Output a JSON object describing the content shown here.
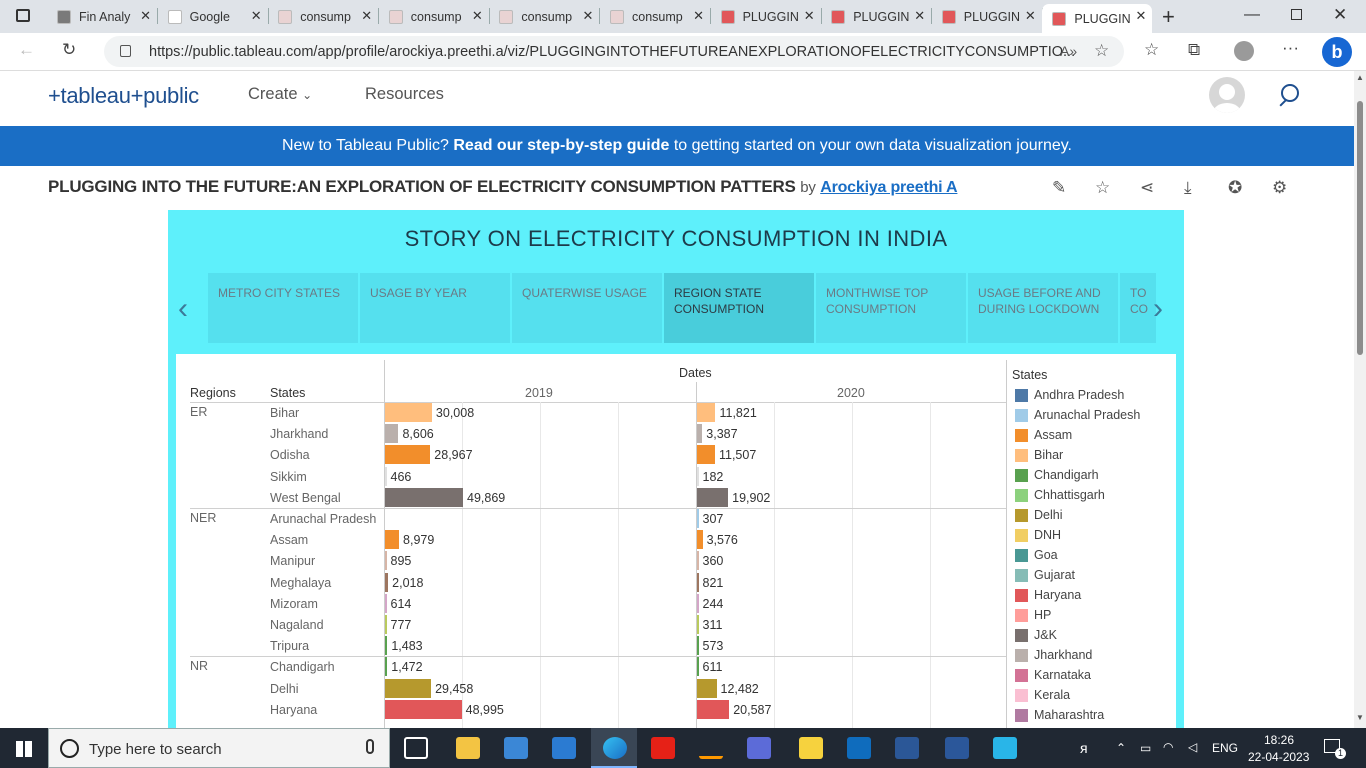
{
  "browser": {
    "tabs": [
      {
        "label": "Fin Analy",
        "favicon_color": "#7a7a7a"
      },
      {
        "label": "Google",
        "favicon_color": "#ffffff"
      },
      {
        "label": "consump",
        "favicon_color": "#e9d3d3"
      },
      {
        "label": "consump",
        "favicon_color": "#e9d3d3"
      },
      {
        "label": "consump",
        "favicon_color": "#e9d3d3"
      },
      {
        "label": "consump",
        "favicon_color": "#e9d3d3"
      },
      {
        "label": "PLUGGIN",
        "favicon_color": "#e15759"
      },
      {
        "label": "PLUGGIN",
        "favicon_color": "#e15759"
      },
      {
        "label": "PLUGGIN",
        "favicon_color": "#e15759"
      },
      {
        "label": "PLUGGIN",
        "favicon_color": "#e15759"
      }
    ],
    "active_tab_index": 9,
    "url": "https://public.tableau.com/app/profile/arockiya.preethi.a/viz/PLUGGINGINTOTHEFUTUREANEXPLORATIONOFELECTRICITYCONSUMPTIO..."
  },
  "tableau": {
    "logo": "+tableau+public",
    "nav_create": "Create",
    "nav_resources": "Resources",
    "banner_lead": "New to Tableau Public? ",
    "banner_link": "Read our step-by-step guide",
    "banner_tail": " to getting started on your own data visualization journey.",
    "viz_title": "PLUGGING INTO THE FUTURE:AN EXPLORATION OF ELECTRICITY CONSUMPTION PATTERS",
    "by": "by",
    "author": "Arockiya preethi A"
  },
  "story": {
    "title": "STORY ON ELECTRICITY CONSUMPTION IN INDIA",
    "points": [
      {
        "label": "METRO CITY STATES"
      },
      {
        "label": "USAGE BY YEAR"
      },
      {
        "label": "QUATERWISE USAGE"
      },
      {
        "label": "REGION STATE CONSUMPTION"
      },
      {
        "label": "MONTHWISE TOP CONSUMPTION"
      },
      {
        "label": "USAGE BEFORE AND DURING LOCKDOWN"
      },
      {
        "label": "TO CO"
      }
    ],
    "active_point_index": 3
  },
  "sheet": {
    "dates_header": "Dates",
    "regions_header": "Regions",
    "states_header": "States",
    "years": [
      "2019",
      "2020"
    ],
    "rows": [
      {
        "region": "ER",
        "state": "Bihar",
        "v2019": "30,008",
        "v2020": "11,821",
        "n2019": 30008,
        "n2020": 11821,
        "color": "#ffbe7d"
      },
      {
        "region": "",
        "state": "Jharkhand",
        "v2019": "8,606",
        "v2020": "3,387",
        "n2019": 8606,
        "n2020": 3387,
        "color": "#bab0ac"
      },
      {
        "region": "",
        "state": "Odisha",
        "v2019": "28,967",
        "v2020": "11,507",
        "n2019": 28967,
        "n2020": 11507,
        "color": "#f28e2b"
      },
      {
        "region": "",
        "state": "Sikkim",
        "v2019": "466",
        "v2020": "182",
        "n2019": 466,
        "n2020": 182,
        "color": "#e0e0e0"
      },
      {
        "region": "",
        "state": "West Bengal",
        "v2019": "49,869",
        "v2020": "19,902",
        "n2019": 49869,
        "n2020": 19902,
        "color": "#79706e"
      },
      {
        "region": "NER",
        "state": "Arunachal Pradesh",
        "v2019": "",
        "v2020": "307",
        "n2019": 0,
        "n2020": 307,
        "color": "#a0cbe8"
      },
      {
        "region": "",
        "state": "Assam",
        "v2019": "8,979",
        "v2020": "3,576",
        "n2019": 8979,
        "n2020": 3576,
        "color": "#f28e2b"
      },
      {
        "region": "",
        "state": "Manipur",
        "v2019": "895",
        "v2020": "360",
        "n2019": 895,
        "n2020": 360,
        "color": "#d7b5a6"
      },
      {
        "region": "",
        "state": "Meghalaya",
        "v2019": "2,018",
        "v2020": "821",
        "n2019": 2018,
        "n2020": 821,
        "color": "#9d7660"
      },
      {
        "region": "",
        "state": "Mizoram",
        "v2019": "614",
        "v2020": "244",
        "n2019": 614,
        "n2020": 244,
        "color": "#d4a6c8"
      },
      {
        "region": "",
        "state": "Nagaland",
        "v2019": "777",
        "v2020": "311",
        "n2019": 777,
        "n2020": 311,
        "color": "#b9ca5d"
      },
      {
        "region": "",
        "state": "Tripura",
        "v2019": "1,483",
        "v2020": "573",
        "n2019": 1483,
        "n2020": 573,
        "color": "#59a14f"
      },
      {
        "region": "NR",
        "state": "Chandigarh",
        "v2019": "1,472",
        "v2020": "611",
        "n2019": 1472,
        "n2020": 611,
        "color": "#59a14f"
      },
      {
        "region": "",
        "state": "Delhi",
        "v2019": "29,458",
        "v2020": "12,482",
        "n2019": 29458,
        "n2020": 12482,
        "color": "#b6992d"
      },
      {
        "region": "",
        "state": "Haryana",
        "v2019": "48,995",
        "v2020": "20,587",
        "n2019": 48995,
        "n2020": 20587,
        "color": "#e15759"
      }
    ],
    "legend_title": "States",
    "legend": [
      {
        "name": "Andhra Pradesh",
        "color": "#4e79a7"
      },
      {
        "name": "Arunachal Pradesh",
        "color": "#a0cbe8"
      },
      {
        "name": "Assam",
        "color": "#f28e2b"
      },
      {
        "name": "Bihar",
        "color": "#ffbe7d"
      },
      {
        "name": "Chandigarh",
        "color": "#59a14f"
      },
      {
        "name": "Chhattisgarh",
        "color": "#8cd17d"
      },
      {
        "name": "Delhi",
        "color": "#b6992d"
      },
      {
        "name": "DNH",
        "color": "#f1ce63"
      },
      {
        "name": "Goa",
        "color": "#499894"
      },
      {
        "name": "Gujarat",
        "color": "#86bcb6"
      },
      {
        "name": "Haryana",
        "color": "#e15759"
      },
      {
        "name": "HP",
        "color": "#ff9d9a"
      },
      {
        "name": "J&K",
        "color": "#79706e"
      },
      {
        "name": "Jharkhand",
        "color": "#bab0ac"
      },
      {
        "name": "Karnataka",
        "color": "#d37295"
      },
      {
        "name": "Kerala",
        "color": "#fabfd2"
      },
      {
        "name": "Maharashtra",
        "color": "#b07aa1"
      }
    ]
  },
  "taskbar": {
    "search_placeholder": "Type here to search",
    "lang": "ENG",
    "time": "18:26",
    "date": "22-04-2023",
    "notif_count": "1"
  }
}
